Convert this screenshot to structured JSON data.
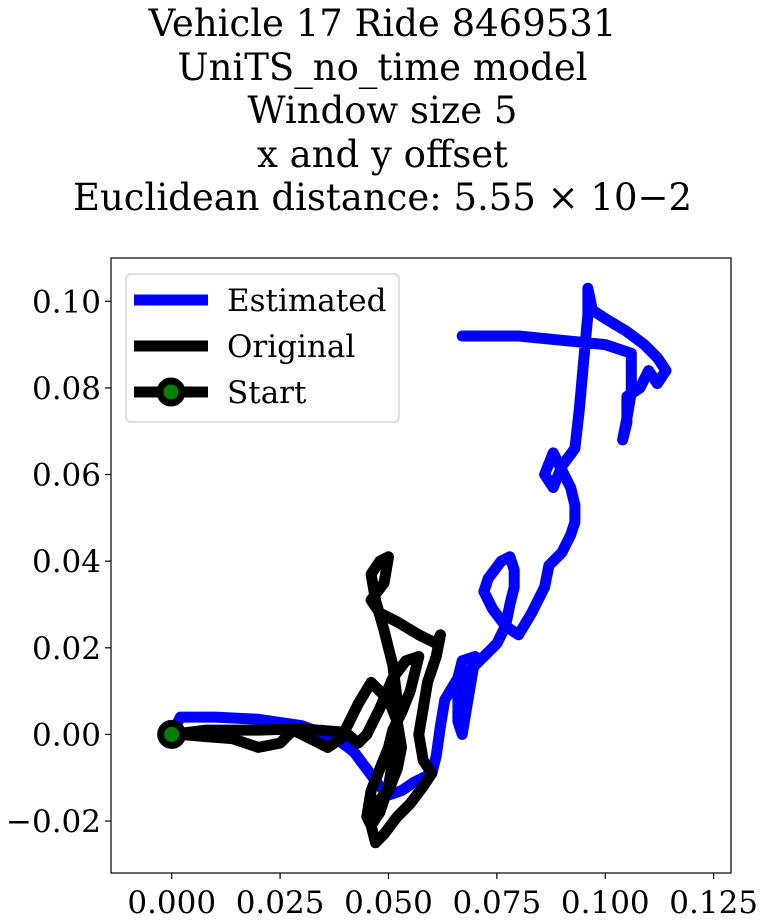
{
  "chart_data": {
    "type": "line",
    "title_lines": [
      "Vehicle 17 Ride 8469531",
      "UniTS_no_time model",
      "Window size 5",
      "x and y offset",
      "Euclidean distance: 5.55 × 10−2"
    ],
    "xlim": [
      -0.014,
      0.129
    ],
    "ylim": [
      -0.032,
      0.11
    ],
    "xticks": [
      0.0,
      0.025,
      0.05,
      0.075,
      0.1,
      0.125
    ],
    "xtick_labels": [
      "0.000",
      "0.025",
      "0.050",
      "0.075",
      "0.100",
      "0.125"
    ],
    "yticks": [
      -0.02,
      0.0,
      0.02,
      0.04,
      0.06,
      0.08,
      0.1
    ],
    "ytick_labels": [
      "−0.02",
      "0.00",
      "0.02",
      "0.04",
      "0.06",
      "0.08",
      "0.10"
    ],
    "grid": false,
    "legend_position": "upper left",
    "legend": [
      "Estimated",
      "Original",
      "Start"
    ],
    "series": [
      {
        "name": "Estimated",
        "color": "#0000ff",
        "points": [
          [
            0.0,
            0.0
          ],
          [
            0.002,
            0.004
          ],
          [
            0.01,
            0.004
          ],
          [
            0.02,
            0.0035
          ],
          [
            0.03,
            0.002
          ],
          [
            0.038,
            -0.001
          ],
          [
            0.042,
            -0.004
          ],
          [
            0.045,
            -0.008
          ],
          [
            0.048,
            -0.012
          ],
          [
            0.05,
            -0.014
          ],
          [
            0.053,
            -0.013
          ],
          [
            0.056,
            -0.011
          ],
          [
            0.06,
            -0.009
          ],
          [
            0.061,
            -0.005
          ],
          [
            0.062,
            0.002
          ],
          [
            0.063,
            0.008
          ],
          [
            0.066,
            0.013
          ],
          [
            0.067,
            0.017
          ],
          [
            0.07,
            0.018
          ],
          [
            0.069,
            0.012
          ],
          [
            0.068,
            0.006
          ],
          [
            0.067,
            0.0
          ],
          [
            0.066,
            0.003
          ],
          [
            0.066,
            0.01
          ],
          [
            0.069,
            0.015
          ],
          [
            0.072,
            0.018
          ],
          [
            0.075,
            0.021
          ],
          [
            0.077,
            0.025
          ],
          [
            0.074,
            0.029
          ],
          [
            0.072,
            0.033
          ],
          [
            0.073,
            0.036
          ],
          [
            0.076,
            0.04
          ],
          [
            0.078,
            0.041
          ],
          [
            0.079,
            0.038
          ],
          [
            0.079,
            0.034
          ],
          [
            0.078,
            0.03
          ],
          [
            0.077,
            0.025
          ],
          [
            0.08,
            0.023
          ],
          [
            0.083,
            0.028
          ],
          [
            0.086,
            0.034
          ],
          [
            0.087,
            0.039
          ],
          [
            0.09,
            0.042
          ],
          [
            0.092,
            0.046
          ],
          [
            0.093,
            0.049
          ],
          [
            0.093,
            0.053
          ],
          [
            0.092,
            0.057
          ],
          [
            0.09,
            0.061
          ],
          [
            0.088,
            0.065
          ],
          [
            0.086,
            0.06
          ],
          [
            0.088,
            0.057
          ],
          [
            0.09,
            0.062
          ],
          [
            0.093,
            0.066
          ],
          [
            0.094,
            0.075
          ],
          [
            0.095,
            0.086
          ],
          [
            0.096,
            0.097
          ],
          [
            0.096,
            0.103
          ],
          [
            0.097,
            0.098
          ],
          [
            0.1,
            0.096
          ],
          [
            0.105,
            0.093
          ],
          [
            0.109,
            0.09
          ],
          [
            0.112,
            0.087
          ],
          [
            0.114,
            0.084
          ],
          [
            0.112,
            0.081
          ],
          [
            0.11,
            0.084
          ],
          [
            0.108,
            0.08
          ],
          [
            0.105,
            0.078
          ],
          [
            0.105,
            0.072
          ],
          [
            0.104,
            0.068
          ],
          [
            0.105,
            0.073
          ],
          [
            0.106,
            0.079
          ],
          [
            0.106,
            0.084
          ],
          [
            0.106,
            0.088
          ],
          [
            0.1,
            0.09
          ],
          [
            0.09,
            0.091
          ],
          [
            0.08,
            0.092
          ],
          [
            0.07,
            0.092
          ],
          [
            0.067,
            0.092
          ]
        ]
      },
      {
        "name": "Original",
        "color": "#000000",
        "points": [
          [
            0.0,
            0.0
          ],
          [
            0.008,
            0.001
          ],
          [
            0.02,
            0.001
          ],
          [
            0.03,
            0.0013
          ],
          [
            0.04,
            0.0005
          ],
          [
            0.043,
            -0.002
          ],
          [
            0.045,
            0.0
          ],
          [
            0.048,
            0.006
          ],
          [
            0.051,
            0.013
          ],
          [
            0.054,
            0.017
          ],
          [
            0.057,
            0.018
          ],
          [
            0.055,
            0.01
          ],
          [
            0.053,
            0.005
          ],
          [
            0.051,
            0.001
          ],
          [
            0.05,
            -0.003
          ],
          [
            0.048,
            -0.008
          ],
          [
            0.046,
            -0.013
          ],
          [
            0.045,
            -0.019
          ],
          [
            0.046,
            -0.021
          ],
          [
            0.048,
            -0.018
          ],
          [
            0.05,
            -0.012
          ],
          [
            0.051,
            -0.006
          ],
          [
            0.052,
            0.0
          ],
          [
            0.052,
            0.008
          ],
          [
            0.051,
            0.016
          ],
          [
            0.049,
            0.024
          ],
          [
            0.047,
            0.031
          ],
          [
            0.046,
            0.037
          ],
          [
            0.048,
            0.04
          ],
          [
            0.05,
            0.041
          ],
          [
            0.049,
            0.035
          ],
          [
            0.046,
            0.031
          ],
          [
            0.048,
            0.028
          ],
          [
            0.052,
            0.026
          ],
          [
            0.057,
            0.023
          ],
          [
            0.061,
            0.021
          ],
          [
            0.062,
            0.023
          ],
          [
            0.061,
            0.018
          ],
          [
            0.059,
            0.012
          ],
          [
            0.058,
            0.006
          ],
          [
            0.057,
            0.0
          ],
          [
            0.058,
            -0.006
          ],
          [
            0.06,
            -0.009
          ],
          [
            0.058,
            -0.012
          ],
          [
            0.055,
            -0.016
          ],
          [
            0.052,
            -0.019
          ],
          [
            0.049,
            -0.023
          ],
          [
            0.047,
            -0.025
          ],
          [
            0.046,
            -0.021
          ],
          [
            0.047,
            -0.016
          ],
          [
            0.05,
            -0.013
          ],
          [
            0.052,
            -0.008
          ],
          [
            0.053,
            -0.003
          ],
          [
            0.052,
            0.003
          ],
          [
            0.05,
            0.008
          ],
          [
            0.046,
            0.012
          ],
          [
            0.043,
            0.007
          ],
          [
            0.041,
            0.003
          ],
          [
            0.039,
            -0.001
          ],
          [
            0.036,
            -0.003
          ],
          [
            0.032,
            -0.001
          ],
          [
            0.028,
            0.001
          ],
          [
            0.025,
            -0.002
          ],
          [
            0.02,
            -0.003
          ],
          [
            0.014,
            -0.001
          ],
          [
            0.008,
            -0.0005
          ],
          [
            0.002,
            0.0
          ],
          [
            0.0,
            0.0
          ]
        ]
      }
    ],
    "start_point": [
      0.0,
      0.0
    ]
  }
}
